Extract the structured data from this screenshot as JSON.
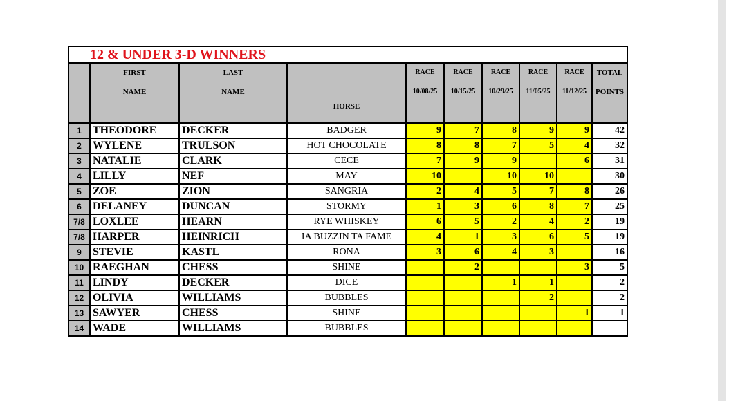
{
  "title": "12 & UNDER  3-D WINNERS",
  "headers": {
    "first": [
      "FIRST",
      "NAME"
    ],
    "last": [
      "LAST",
      "NAME"
    ],
    "horse": "HORSE",
    "races": [
      {
        "label": "RACE",
        "date": "10/08/25"
      },
      {
        "label": "RACE",
        "date": "10/15/25"
      },
      {
        "label": "RACE",
        "date": "10/29/25"
      },
      {
        "label": "RACE",
        "date": "11/05/25"
      },
      {
        "label": "RACE",
        "date": "11/12/25"
      }
    ],
    "total": [
      "TOTAL",
      "POINTS"
    ]
  },
  "colors": {
    "title": "#e0141c",
    "header_bg": "#c0c0c0",
    "points_bg": "#ffff00"
  },
  "rows": [
    {
      "rank": "1",
      "first": "THEODORE",
      "last": "DECKER",
      "horse": "BADGER",
      "pts": [
        "9",
        "7",
        "8",
        "9",
        "9"
      ],
      "total": "42"
    },
    {
      "rank": "2",
      "first": "WYLENE",
      "last": "TRULSON",
      "horse": "HOT CHOCOLATE",
      "pts": [
        "8",
        "8",
        "7",
        "5",
        "4"
      ],
      "total": "32"
    },
    {
      "rank": "3",
      "first": "NATALIE",
      "last": "CLARK",
      "horse": "CECE",
      "pts": [
        "7",
        "9",
        "9",
        "",
        "6"
      ],
      "total": "31"
    },
    {
      "rank": "4",
      "first": "LILLY",
      "last": "NEF",
      "horse": "MAY",
      "pts": [
        "10",
        "",
        "10",
        "10",
        ""
      ],
      "total": "30"
    },
    {
      "rank": "5",
      "first": "ZOE",
      "last": "ZION",
      "horse": "SANGRIA",
      "pts": [
        "2",
        "4",
        "5",
        "7",
        "8"
      ],
      "total": "26"
    },
    {
      "rank": "6",
      "first": "DELANEY",
      "last": "DUNCAN",
      "horse": "STORMY",
      "pts": [
        "1",
        "3",
        "6",
        "8",
        "7"
      ],
      "total": "25"
    },
    {
      "rank": "7/8",
      "first": "LOXLEE",
      "last": "HEARN",
      "horse": "RYE WHISKEY",
      "pts": [
        "6",
        "5",
        "2",
        "4",
        "2"
      ],
      "total": "19"
    },
    {
      "rank": "7/8",
      "first": "HARPER",
      "last": "HEINRICH",
      "horse": "IA BUZZIN TA FAME",
      "pts": [
        "4",
        "1",
        "3",
        "6",
        "5"
      ],
      "total": "19"
    },
    {
      "rank": "9",
      "first": "STEVIE",
      "last": "KASTL",
      "horse": "RONA",
      "pts": [
        "3",
        "6",
        "4",
        "3",
        ""
      ],
      "total": "16"
    },
    {
      "rank": "10",
      "first": "RAEGHAN",
      "last": "CHESS",
      "horse": "SHINE",
      "pts": [
        "",
        "2",
        "",
        "",
        "3"
      ],
      "total": "5"
    },
    {
      "rank": "11",
      "first": "LINDY",
      "last": "DECKER",
      "horse": "DICE",
      "pts": [
        "",
        "",
        "1",
        "1",
        ""
      ],
      "total": "2"
    },
    {
      "rank": "12",
      "first": "OLIVIA",
      "last": "WILLIAMS",
      "horse": "BUBBLES",
      "pts": [
        "",
        "",
        "",
        "2",
        ""
      ],
      "total": "2"
    },
    {
      "rank": "13",
      "first": "SAWYER",
      "last": "CHESS",
      "horse": "SHINE",
      "pts": [
        "",
        "",
        "",
        "",
        "1"
      ],
      "total": "1"
    },
    {
      "rank": "14",
      "first": "WADE",
      "last": "WILLIAMS",
      "horse": "BUBBLES",
      "pts": [
        "",
        "",
        "",
        "",
        ""
      ],
      "total": ""
    }
  ]
}
